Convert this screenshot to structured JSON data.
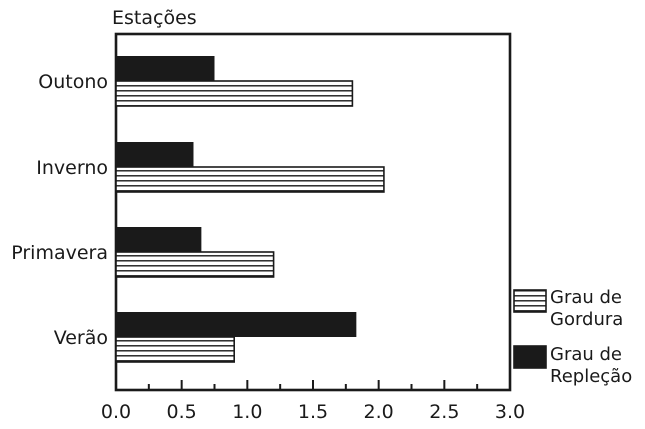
{
  "colors": {
    "ink": "#1a1a1a",
    "background": "#ffffff"
  },
  "chart_data": {
    "type": "bar",
    "orientation": "horizontal",
    "y_axis_title": "Estações",
    "xlabel": "",
    "categories": [
      "Outono",
      "Inverno",
      "Primavera",
      "Verão"
    ],
    "series": [
      {
        "name": "Grau de Repleção",
        "legend_lines": [
          "Grau de",
          "Repleção"
        ],
        "fill": "solid",
        "values": [
          0.75,
          0.59,
          0.65,
          1.83
        ]
      },
      {
        "name": "Grau de Gordura",
        "legend_lines": [
          "Grau de",
          "Gordura"
        ],
        "fill": "horizontal-stripes",
        "values": [
          1.8,
          2.04,
          1.2,
          0.9
        ]
      }
    ],
    "xlim": [
      0,
      3.0
    ],
    "xticks": [
      0.0,
      0.5,
      1.0,
      1.5,
      2.0,
      2.5,
      3.0
    ],
    "xtick_labels": [
      "0.0",
      "0.5",
      "1.0",
      "1.5",
      "2.0",
      "2.5",
      "3.0"
    ],
    "legend_position": "right",
    "grid": false
  }
}
